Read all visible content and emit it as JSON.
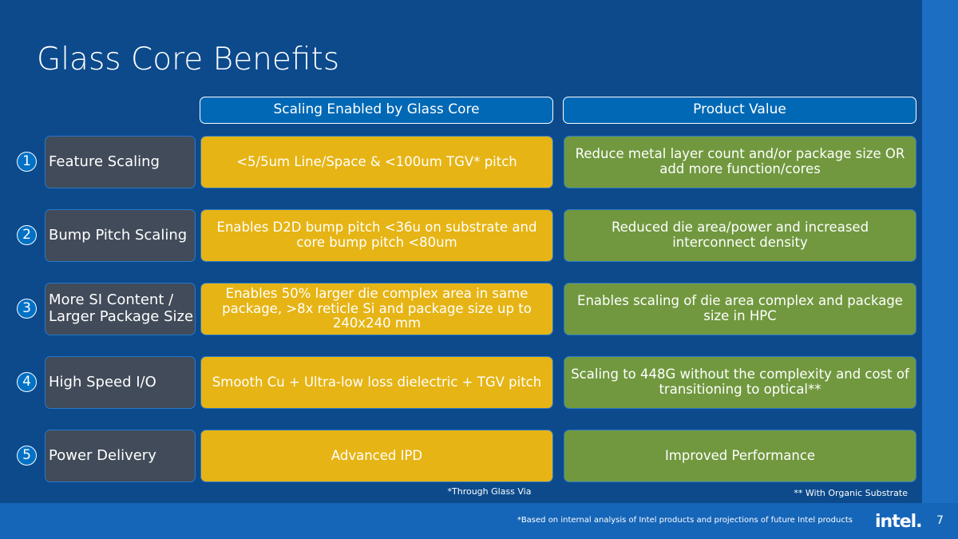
{
  "header": {
    "title": "Glass Core Benefits"
  },
  "columns": [
    "Scaling Enabled by Glass Core",
    "Product Value"
  ],
  "rows": [
    {
      "number": "1",
      "label": "Feature Scaling",
      "scaling": "<5/5um Line/Space & <100um TGV* pitch",
      "value": "Reduce metal layer count and/or package size OR add more function/cores"
    },
    {
      "number": "2",
      "label": "Bump Pitch Scaling",
      "scaling": "Enables D2D bump pitch <36u on substrate and core bump pitch <80um",
      "value": "Reduced die area/power and increased interconnect density"
    },
    {
      "number": "3",
      "label": "More SI Content / Larger Package Size",
      "scaling": "Enables 50% larger die complex area in same package, >8x reticle Si and package size up to 240x240 mm",
      "value": "Enables scaling of die area complex and package size in HPC"
    },
    {
      "number": "4",
      "label": "High Speed I/O",
      "scaling": "Smooth Cu + Ultra-low loss dielectric + TGV pitch",
      "value": "Scaling to 448G without the complexity and cost of transitioning to optical**"
    },
    {
      "number": "5",
      "label": "Power Delivery",
      "scaling": "Advanced IPD",
      "value": "Improved Performance"
    }
  ],
  "footnotes": {
    "tgv": "*Through Glass Via",
    "organic": "** With Organic Substrate"
  },
  "footer": {
    "disclaimer": "*Based on internal analysis of Intel products and projections of future Intel products",
    "logo": "intel.",
    "page": "7"
  }
}
